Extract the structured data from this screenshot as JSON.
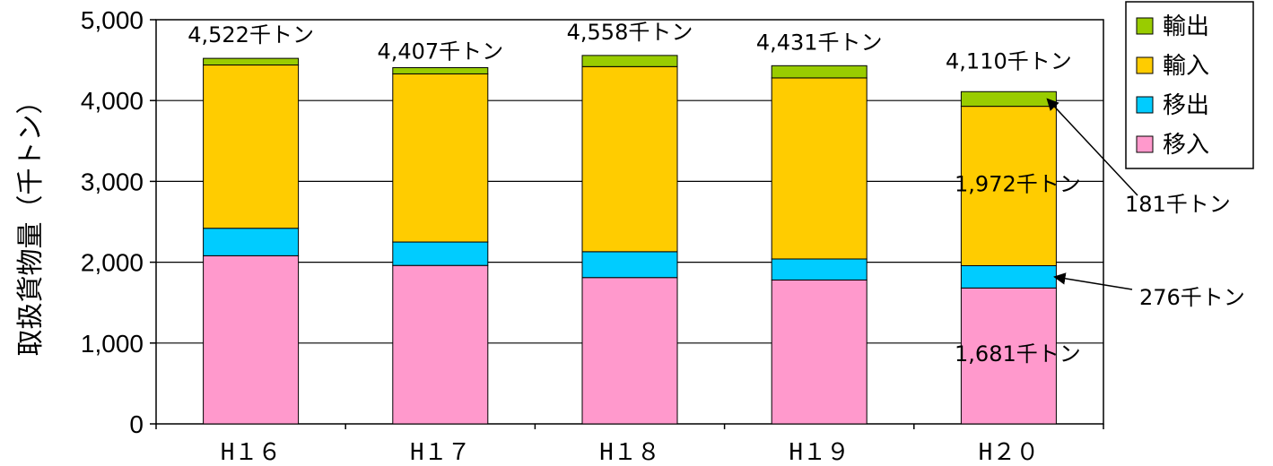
{
  "chart_data": {
    "type": "bar",
    "stacked": true,
    "ylabel": "取扱貨物量（千トン）",
    "ylim": [
      0,
      5000
    ],
    "yticks": [
      "0",
      "1,000",
      "2,000",
      "3,000",
      "4,000",
      "5,000"
    ],
    "grid": true,
    "legend_position": "top-right",
    "categories": [
      "H16",
      "H17",
      "H18",
      "H19",
      "H20"
    ],
    "category_labels": [
      "H１６",
      "H１７",
      "H１８",
      "H１９",
      "H２０"
    ],
    "series": [
      {
        "name": "移入",
        "color": "#FF99CC",
        "values": [
          2080,
          1960,
          1810,
          1780,
          1681
        ]
      },
      {
        "name": "移出",
        "color": "#00CCFF",
        "values": [
          340,
          290,
          320,
          260,
          276
        ]
      },
      {
        "name": "輸入",
        "color": "#FFCC00",
        "values": [
          2020,
          2080,
          2290,
          2240,
          1972
        ]
      },
      {
        "name": "輸出",
        "color": "#99CC00",
        "values": [
          82,
          77,
          138,
          151,
          181
        ]
      }
    ],
    "totals": [
      4522,
      4407,
      4558,
      4431,
      4110
    ],
    "total_labels": [
      "4,522千トン",
      "4,407千トン",
      "4,558千トン",
      "4,431千トン",
      "4,110千トン"
    ],
    "annotations": {
      "import": "1,972千トン",
      "transfer_in": "1,681千トン",
      "export_callout": "181千トン",
      "transfer_out_callout": "276千トン"
    }
  }
}
